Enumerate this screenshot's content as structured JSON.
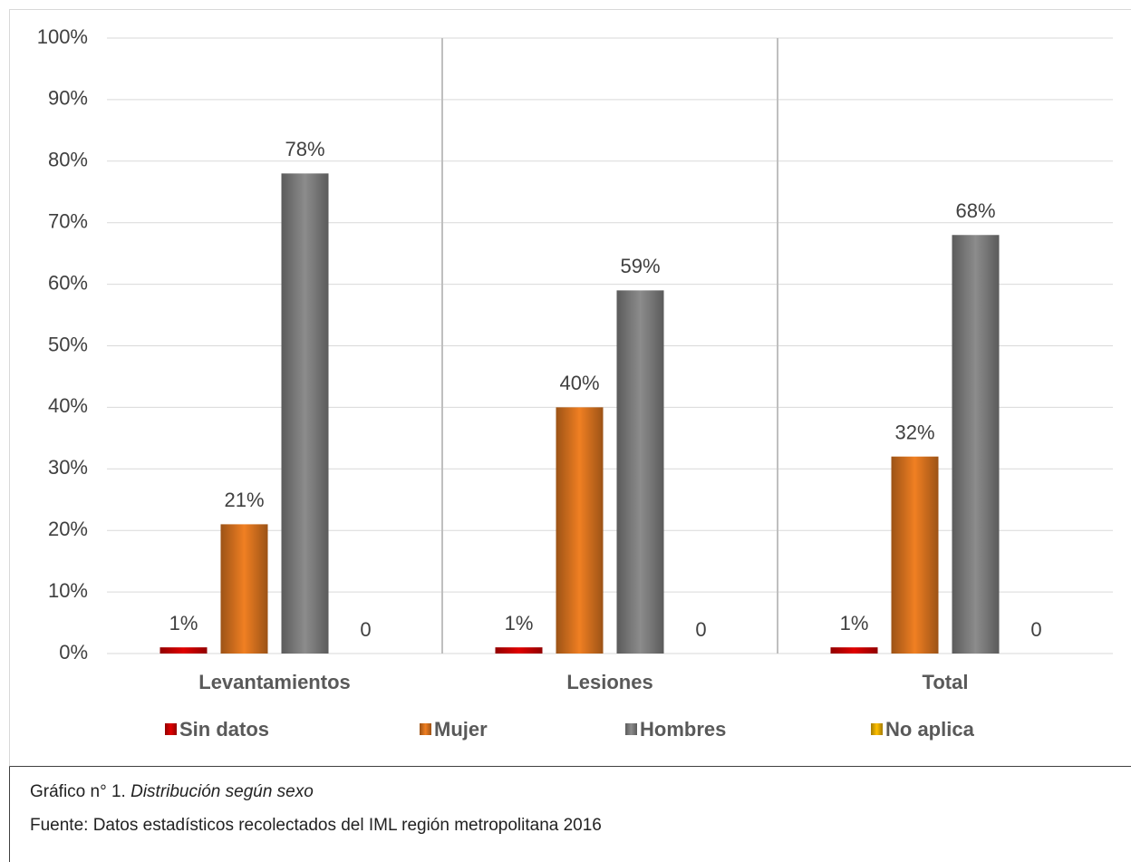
{
  "chart_data": {
    "type": "bar",
    "categories": [
      "Levantamientos",
      "Lesiones",
      "Total"
    ],
    "series": [
      {
        "name": "Sin datos",
        "color": "#e00000",
        "values": [
          1,
          1,
          1
        ],
        "value_labels": [
          "1%",
          "1%",
          "1%"
        ]
      },
      {
        "name": "Mujer",
        "color": "#f07f22",
        "values": [
          21,
          40,
          32
        ],
        "value_labels": [
          "21%",
          "40%",
          "32%"
        ]
      },
      {
        "name": "Hombres",
        "color": "#8c8c8c",
        "values": [
          78,
          59,
          68
        ],
        "value_labels": [
          "78%",
          "59%",
          "68%"
        ]
      },
      {
        "name": "No aplica",
        "color": "#ffc000",
        "values": [
          0,
          0,
          0
        ],
        "value_labels": [
          "0",
          "0",
          "0"
        ]
      }
    ],
    "ylim": [
      0,
      100
    ],
    "yticks": [
      {
        "value": 0,
        "label": "0%"
      },
      {
        "value": 10,
        "label": "10%"
      },
      {
        "value": 20,
        "label": "20%"
      },
      {
        "value": 30,
        "label": "30%"
      },
      {
        "value": 40,
        "label": "40%"
      },
      {
        "value": 50,
        "label": "50%"
      },
      {
        "value": 60,
        "label": "60%"
      },
      {
        "value": 70,
        "label": "70%"
      },
      {
        "value": 80,
        "label": "80%"
      },
      {
        "value": 90,
        "label": "90%"
      },
      {
        "value": 100,
        "label": "100%"
      }
    ],
    "grid": true,
    "legend": "bottom"
  },
  "caption": {
    "prefix": "Gráfico n° 1.",
    "title": "Distribución según sexo",
    "source": "Fuente: Datos estadísticos recolectados del IML región metropolitana 2016"
  }
}
